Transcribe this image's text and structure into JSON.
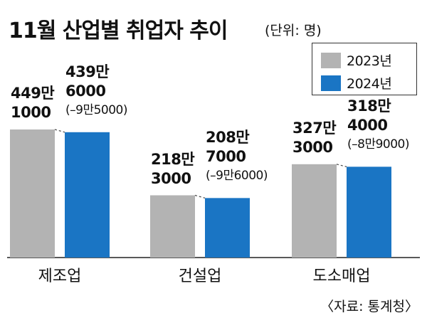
{
  "header": {
    "title": "11월 산업별 취업자 추이",
    "unit": "(단위: 명)"
  },
  "legend": [
    {
      "label": "2023년",
      "color": "#b3b3b3"
    },
    {
      "label": "2024년",
      "color": "#1a75c4"
    }
  ],
  "source": "〈자료: 통계청〉",
  "chart_data": {
    "type": "bar",
    "title": "11월 산업별 취업자 추이",
    "unit": "(단위: 명)",
    "categories": [
      "제조업",
      "건설업",
      "도소매업"
    ],
    "series": [
      {
        "name": "2023년",
        "color": "#b3b3b3",
        "values": [
          4491000,
          2183000,
          3273000
        ]
      },
      {
        "name": "2024년",
        "color": "#1a75c4",
        "values": [
          4396000,
          2087000,
          3184000
        ]
      }
    ],
    "value_labels": {
      "2023년": [
        [
          "449만",
          "1000"
        ],
        [
          "218만",
          "3000"
        ],
        [
          "327만",
          "3000"
        ]
      ],
      "2024년": [
        [
          "439만",
          "6000"
        ],
        [
          "208만",
          "7000"
        ],
        [
          "318만",
          "4000"
        ]
      ]
    },
    "change_labels": [
      "(–9만5000)",
      "(–9만6000)",
      "(–8만9000)"
    ],
    "legend_position": "top-right",
    "grid": false,
    "ylim": [
      0,
      4600000
    ]
  }
}
